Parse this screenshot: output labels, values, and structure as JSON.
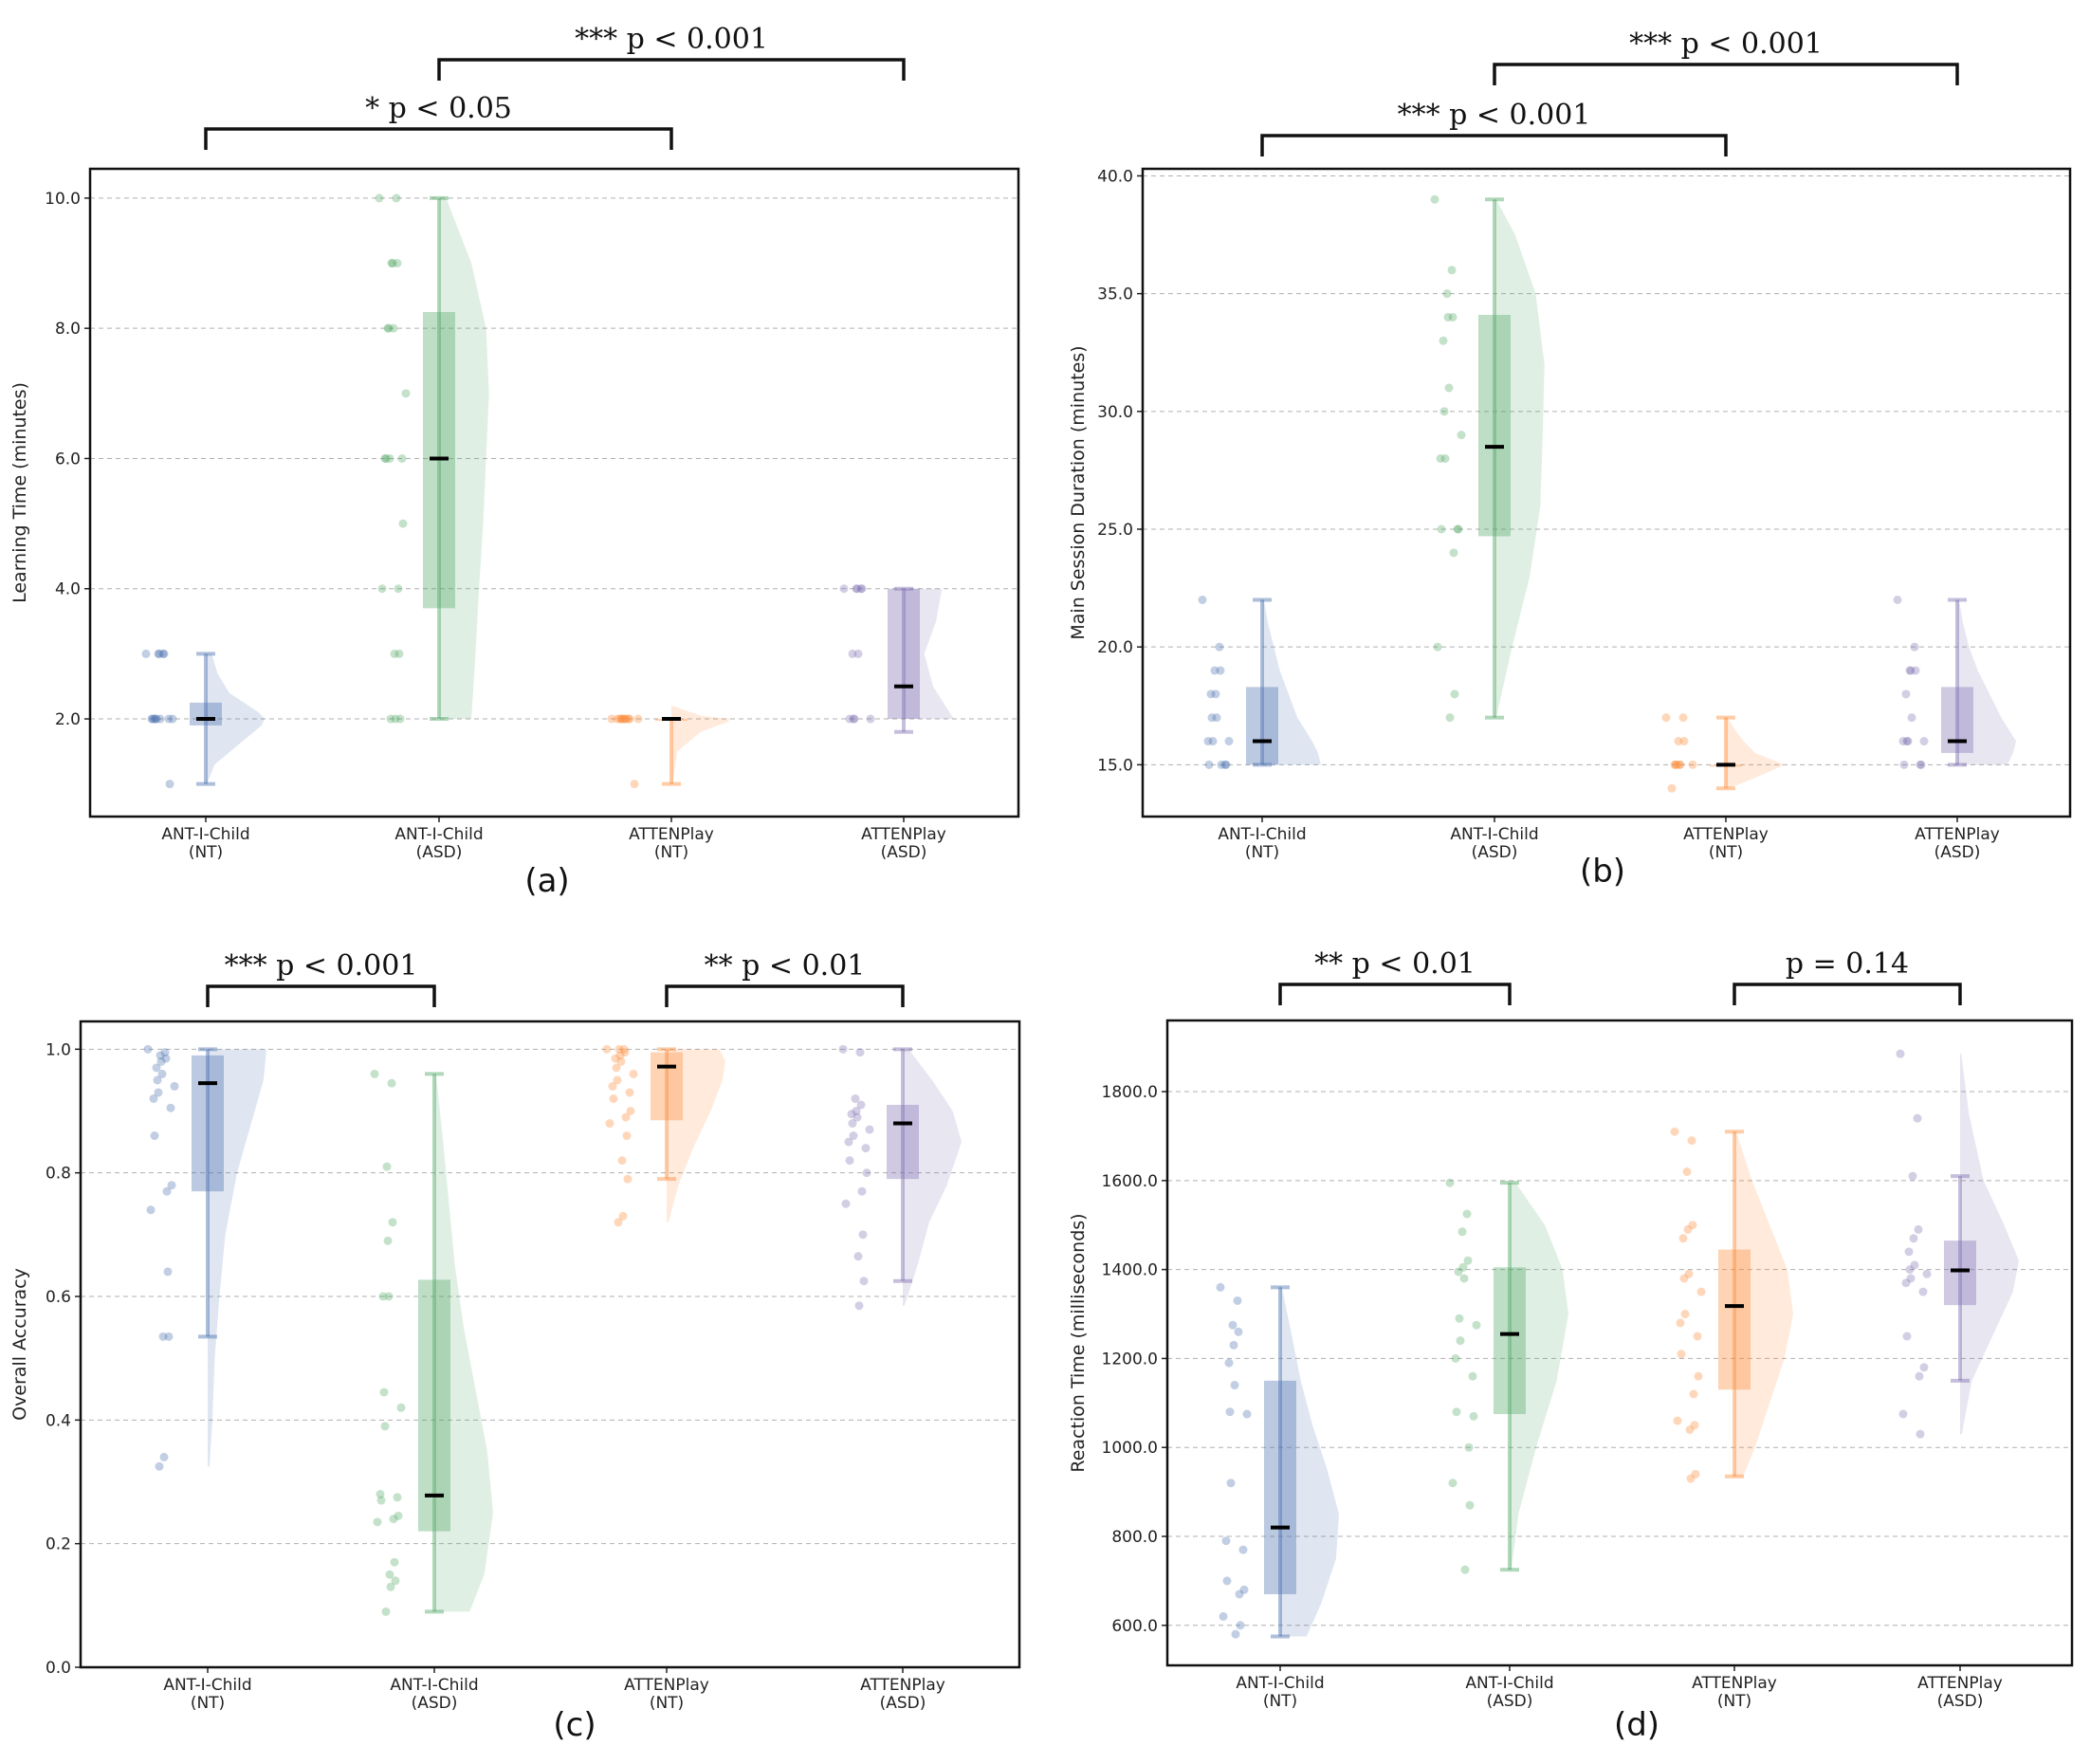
{
  "groups": [
    "NT",
    "ASD",
    "NT",
    "ASD"
  ],
  "colors": {
    "ANT-I-Child (NT)": "#4c72b0",
    "ANT-I-Child (ASD)": "#55a868",
    "ATTENPlay (NT)": "#fd8d3c",
    "ATTENPlay (ASD)": "#8172b2",
    "median": "#000000",
    "grid": "#b0b0b0"
  },
  "chart_data": [
    {
      "type": "raincloud",
      "panel_label": "(a)",
      "ylabel": "Learning Time (minutes)",
      "ylim": [
        0.5,
        10.45
      ],
      "yticks": [
        2,
        4,
        6,
        8,
        10
      ],
      "ytick_labels": [
        "2.0",
        "4.0",
        "6.0",
        "8.0",
        "10.0"
      ],
      "grid": "y-dashed",
      "categories": [
        "ANT-I-Child\n(NT)",
        "ANT-I-Child\n(ASD)",
        "ATTENPlay\n(NT)",
        "ATTENPlay\n(ASD)"
      ],
      "series": [
        {
          "median": 2.0,
          "q1": 1.9,
          "q3": 2.25,
          "whisker_low": 1.0,
          "whisker_high": 3.0,
          "points": [
            3,
            3,
            3,
            3,
            3,
            2,
            2,
            2,
            2,
            2,
            2,
            2,
            2,
            1
          ],
          "violin_x": [
            1.0,
            1.3,
            1.6,
            1.9,
            2.0,
            2.1,
            2.4,
            2.7,
            3.0
          ],
          "violin_w": [
            0.02,
            0.15,
            0.55,
            0.95,
            1.0,
            0.9,
            0.4,
            0.2,
            0.1
          ]
        },
        {
          "median": 6.0,
          "q1": 3.7,
          "q3": 8.25,
          "whisker_low": 2.0,
          "whisker_high": 10.0,
          "points": [
            10,
            10,
            9,
            9,
            9,
            8,
            8,
            8,
            7,
            6,
            6,
            6,
            6,
            5,
            4,
            4,
            3,
            3,
            2,
            2,
            2
          ],
          "violin_x": [
            2.0,
            3.0,
            4.0,
            5.0,
            6.0,
            7.0,
            8.0,
            9.0,
            10.0
          ],
          "violin_w": [
            0.55,
            0.62,
            0.68,
            0.75,
            0.8,
            0.85,
            0.8,
            0.55,
            0.12
          ]
        },
        {
          "median": 2.0,
          "q1": 2.0,
          "q3": 2.0,
          "whisker_low": 1.0,
          "whisker_high": 2.0,
          "points": [
            2,
            2,
            2,
            2,
            2,
            2,
            2,
            2,
            2,
            2,
            2,
            1
          ],
          "violin_x": [
            1.0,
            1.5,
            1.8,
            1.95,
            2.0,
            2.05,
            2.2
          ],
          "violin_w": [
            0.02,
            0.1,
            0.5,
            0.95,
            1.0,
            0.5,
            0.02
          ]
        },
        {
          "median": 2.5,
          "q1": 2.0,
          "q3": 4.0,
          "whisker_low": 1.8,
          "whisker_high": 4.0,
          "points": [
            4,
            4,
            4,
            4,
            4,
            3,
            3,
            2,
            2,
            2,
            2
          ],
          "violin_x": [
            2.0,
            2.5,
            3.0,
            3.5,
            4.0
          ],
          "violin_w": [
            0.85,
            0.5,
            0.35,
            0.55,
            0.65
          ]
        }
      ],
      "annotations": [
        {
          "text": "* p < 0.05",
          "from": 0,
          "to": 2,
          "level": 1
        },
        {
          "text": "*** p < 0.001",
          "from": 1,
          "to": 3,
          "level": 2
        }
      ]
    },
    {
      "type": "raincloud",
      "panel_label": "(b)",
      "ylabel": "Main Session Duration (minutes)",
      "ylim": [
        12.8,
        40.3
      ],
      "yticks": [
        15,
        20,
        25,
        30,
        35,
        40
      ],
      "ytick_labels": [
        "15.0",
        "20.0",
        "25.0",
        "30.0",
        "35.0",
        "40.0"
      ],
      "grid": "y-dashed",
      "categories": [
        "ANT-I-Child\n(NT)",
        "ANT-I-Child\n(ASD)",
        "ATTENPlay\n(NT)",
        "ATTENPlay\n(ASD)"
      ],
      "series": [
        {
          "median": 16.0,
          "q1": 15.0,
          "q3": 18.3,
          "whisker_low": 15.0,
          "whisker_high": 22.0,
          "points": [
            22,
            20,
            19,
            19,
            18,
            18,
            17,
            17,
            16,
            16,
            16,
            15,
            15,
            15,
            15
          ],
          "violin_x": [
            15.0,
            15.5,
            16.0,
            17.0,
            18.0,
            19.0,
            20.0,
            21.0,
            22.0
          ],
          "violin_w": [
            1.0,
            0.95,
            0.85,
            0.6,
            0.45,
            0.3,
            0.2,
            0.1,
            0.03
          ]
        },
        {
          "median": 28.5,
          "q1": 24.7,
          "q3": 34.1,
          "whisker_low": 17.0,
          "whisker_high": 39.0,
          "points": [
            39,
            36,
            35,
            34,
            34,
            33,
            31,
            30,
            29,
            28,
            28,
            25,
            25,
            25,
            24,
            20,
            18,
            17
          ],
          "violin_x": [
            17.0,
            20.0,
            23.0,
            26.0,
            29.0,
            32.0,
            35.0,
            37.5,
            39.0
          ],
          "violin_w": [
            0.03,
            0.3,
            0.6,
            0.78,
            0.82,
            0.85,
            0.7,
            0.35,
            0.03
          ]
        },
        {
          "median": 15.0,
          "q1": 15.0,
          "q3": 15.0,
          "whisker_low": 14.0,
          "whisker_high": 17.0,
          "points": [
            17,
            17,
            16,
            16,
            15,
            15,
            15,
            15,
            15,
            15,
            14
          ],
          "violin_x": [
            14.0,
            14.5,
            15.0,
            15.5,
            16.0,
            16.5,
            17.0
          ],
          "violin_w": [
            0.05,
            0.55,
            1.0,
            0.5,
            0.3,
            0.15,
            0.03
          ]
        },
        {
          "median": 16.0,
          "q1": 15.5,
          "q3": 18.3,
          "whisker_low": 15.0,
          "whisker_high": 22.0,
          "points": [
            22,
            20,
            19,
            19,
            19,
            18,
            17,
            16,
            16,
            16,
            16,
            15,
            15,
            15
          ],
          "violin_x": [
            15.0,
            15.5,
            16.0,
            17.0,
            18.0,
            19.0,
            20.0,
            21.0,
            22.0
          ],
          "violin_w": [
            0.85,
            0.95,
            1.0,
            0.75,
            0.55,
            0.35,
            0.2,
            0.1,
            0.03
          ]
        }
      ],
      "annotations": [
        {
          "text": "*** p < 0.001",
          "from": 0,
          "to": 2,
          "level": 1
        },
        {
          "text": "*** p < 0.001",
          "from": 1,
          "to": 3,
          "level": 2
        }
      ]
    },
    {
      "type": "raincloud",
      "panel_label": "(c)",
      "ylabel": "Overall Accuracy",
      "ylim": [
        0.0,
        1.045
      ],
      "yticks": [
        0.0,
        0.2,
        0.4,
        0.6,
        0.8,
        1.0
      ],
      "ytick_labels": [
        "0.0",
        "0.2",
        "0.4",
        "0.6",
        "0.8",
        "1.0"
      ],
      "grid": "y-dashed",
      "categories": [
        "ANT-I-Child\n(NT)",
        "ANT-I-Child\n(ASD)",
        "ATTENPlay\n(NT)",
        "ATTENPlay\n(ASD)"
      ],
      "series": [
        {
          "median": 0.945,
          "q1": 0.77,
          "q3": 0.99,
          "whisker_low": 0.535,
          "whisker_high": 1.0,
          "points": [
            1.0,
            0.995,
            0.99,
            0.985,
            0.98,
            0.97,
            0.96,
            0.95,
            0.94,
            0.93,
            0.92,
            0.905,
            0.86,
            0.78,
            0.77,
            0.74,
            0.64,
            0.535,
            0.535,
            0.34,
            0.325
          ],
          "violin_x": [
            0.325,
            0.4,
            0.5,
            0.6,
            0.7,
            0.8,
            0.9,
            0.95,
            1.0
          ],
          "violin_w": [
            0.03,
            0.08,
            0.12,
            0.2,
            0.3,
            0.5,
            0.8,
            0.95,
            1.0
          ]
        },
        {
          "median": 0.278,
          "q1": 0.22,
          "q3": 0.627,
          "whisker_low": 0.09,
          "whisker_high": 0.96,
          "points": [
            0.96,
            0.945,
            0.81,
            0.72,
            0.69,
            0.6,
            0.6,
            0.445,
            0.42,
            0.39,
            0.28,
            0.275,
            0.27,
            0.245,
            0.24,
            0.235,
            0.17,
            0.15,
            0.14,
            0.13,
            0.09
          ],
          "violin_x": [
            0.09,
            0.15,
            0.25,
            0.35,
            0.45,
            0.55,
            0.65,
            0.75,
            0.85,
            0.96
          ],
          "violin_w": [
            0.6,
            0.85,
            1.0,
            0.9,
            0.7,
            0.5,
            0.35,
            0.25,
            0.15,
            0.03
          ]
        },
        {
          "median": 0.972,
          "q1": 0.885,
          "q3": 0.995,
          "whisker_low": 0.79,
          "whisker_high": 1.0,
          "points": [
            1.0,
            1.0,
            1.0,
            0.995,
            0.99,
            0.985,
            0.98,
            0.97,
            0.96,
            0.95,
            0.94,
            0.93,
            0.92,
            0.9,
            0.89,
            0.88,
            0.86,
            0.82,
            0.79,
            0.73,
            0.72
          ],
          "violin_x": [
            0.72,
            0.78,
            0.84,
            0.9,
            0.95,
            0.98,
            1.0
          ],
          "violin_w": [
            0.03,
            0.2,
            0.45,
            0.75,
            0.95,
            1.0,
            0.9
          ]
        },
        {
          "median": 0.88,
          "q1": 0.79,
          "q3": 0.91,
          "whisker_low": 0.625,
          "whisker_high": 1.0,
          "points": [
            1.0,
            0.995,
            0.92,
            0.91,
            0.9,
            0.895,
            0.89,
            0.88,
            0.87,
            0.86,
            0.85,
            0.84,
            0.82,
            0.8,
            0.77,
            0.75,
            0.7,
            0.665,
            0.625,
            0.585
          ],
          "violin_x": [
            0.585,
            0.65,
            0.72,
            0.78,
            0.85,
            0.9,
            0.95,
            1.0
          ],
          "violin_w": [
            0.03,
            0.25,
            0.45,
            0.75,
            1.0,
            0.85,
            0.5,
            0.1
          ]
        }
      ],
      "annotations": [
        {
          "text": "*** p < 0.001",
          "from": 0,
          "to": 1,
          "level": 1
        },
        {
          "text": "** p < 0.01",
          "from": 2,
          "to": 3,
          "level": 1
        }
      ]
    },
    {
      "type": "raincloud",
      "panel_label": "(d)",
      "ylabel": "Reaction Time (milliseconds)",
      "ylim": [
        510,
        1960
      ],
      "yticks": [
        600,
        800,
        1000,
        1200,
        1400,
        1600,
        1800
      ],
      "ytick_labels": [
        "600.0",
        "800.0",
        "1000.0",
        "1200.0",
        "1400.0",
        "1600.0",
        "1800.0"
      ],
      "grid": "y-dashed",
      "categories": [
        "ANT-I-Child\n(NT)",
        "ANT-I-Child\n(ASD)",
        "ATTENPlay\n(NT)",
        "ATTENPlay\n(ASD)"
      ],
      "series": [
        {
          "median": 820,
          "q1": 670,
          "q3": 1150,
          "whisker_low": 575,
          "whisker_high": 1360,
          "points": [
            1360,
            1330,
            1275,
            1260,
            1230,
            1190,
            1140,
            1080,
            1075,
            920,
            790,
            770,
            700,
            680,
            670,
            620,
            600,
            580
          ],
          "violin_x": [
            575,
            650,
            750,
            850,
            950,
            1050,
            1150,
            1250,
            1360
          ],
          "violin_w": [
            0.45,
            0.7,
            0.95,
            1.0,
            0.8,
            0.55,
            0.35,
            0.2,
            0.03
          ]
        },
        {
          "median": 1255,
          "q1": 1075,
          "q3": 1405,
          "whisker_low": 725,
          "whisker_high": 1595,
          "points": [
            1595,
            1525,
            1485,
            1420,
            1405,
            1395,
            1380,
            1290,
            1275,
            1240,
            1200,
            1160,
            1080,
            1070,
            1000,
            920,
            870,
            725
          ],
          "violin_x": [
            725,
            850,
            1000,
            1150,
            1300,
            1400,
            1500,
            1595
          ],
          "violin_w": [
            0.03,
            0.15,
            0.45,
            0.8,
            1.0,
            0.9,
            0.6,
            0.1
          ]
        },
        {
          "median": 1318,
          "q1": 1130,
          "q3": 1445,
          "whisker_low": 935,
          "whisker_high": 1710,
          "points": [
            1710,
            1690,
            1620,
            1500,
            1490,
            1470,
            1390,
            1380,
            1350,
            1300,
            1280,
            1250,
            1210,
            1160,
            1120,
            1060,
            1050,
            1040,
            940,
            930
          ],
          "violin_x": [
            935,
            1000,
            1100,
            1200,
            1300,
            1400,
            1500,
            1600,
            1710
          ],
          "violin_w": [
            0.15,
            0.35,
            0.6,
            0.85,
            1.0,
            0.9,
            0.6,
            0.3,
            0.03
          ]
        },
        {
          "median": 1398,
          "q1": 1320,
          "q3": 1465,
          "whisker_low": 1150,
          "whisker_high": 1610,
          "points": [
            1885,
            1740,
            1610,
            1490,
            1470,
            1440,
            1410,
            1400,
            1390,
            1380,
            1370,
            1350,
            1250,
            1180,
            1160,
            1075,
            1030
          ],
          "violin_x": [
            1030,
            1150,
            1250,
            1350,
            1420,
            1500,
            1600,
            1750,
            1885
          ],
          "violin_w": [
            0.03,
            0.2,
            0.55,
            0.9,
            1.0,
            0.75,
            0.4,
            0.15,
            0.02
          ]
        }
      ],
      "annotations": [
        {
          "text": "** p < 0.01",
          "from": 0,
          "to": 1,
          "level": 1
        },
        {
          "text": "p = 0.14",
          "from": 2,
          "to": 3,
          "level": 1
        }
      ]
    }
  ]
}
